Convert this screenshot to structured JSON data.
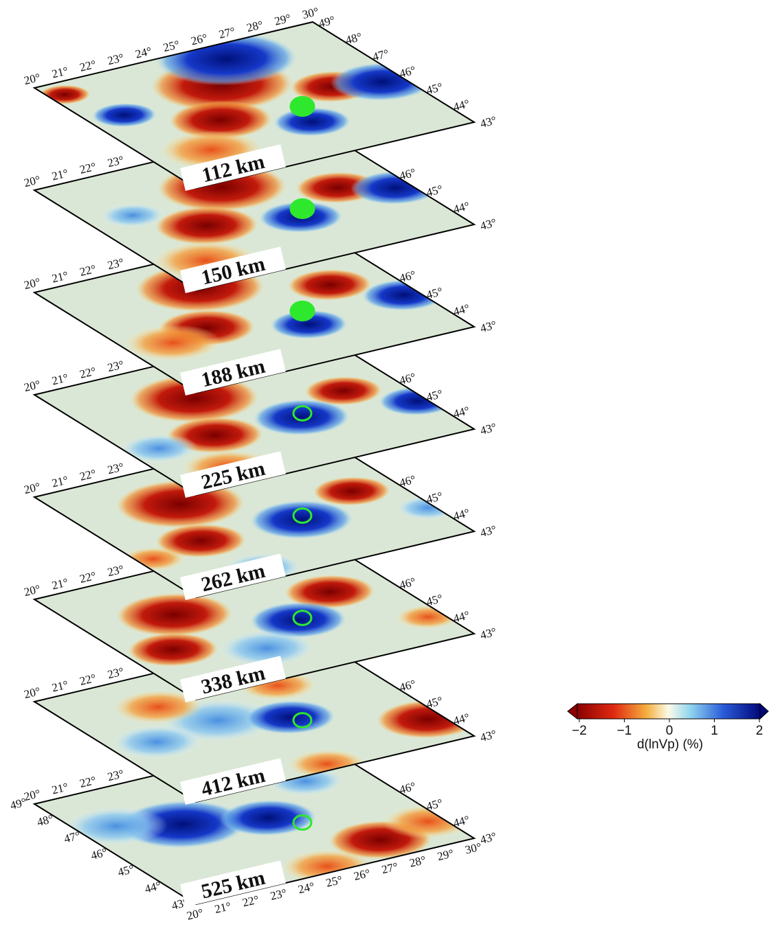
{
  "slices": [
    {
      "depth": "112 km"
    },
    {
      "depth": "150 km"
    },
    {
      "depth": "188 km"
    },
    {
      "depth": "225 km"
    },
    {
      "depth": "262 km"
    },
    {
      "depth": "338 km"
    },
    {
      "depth": "412 km"
    },
    {
      "depth": "525 km"
    }
  ],
  "lon_labels": [
    "20°",
    "21°",
    "22°",
    "23°",
    "24°",
    "25°",
    "26°",
    "27°",
    "28°",
    "29°",
    "30°"
  ],
  "lat_labels": [
    "43°",
    "44°",
    "45°",
    "46°",
    "47°",
    "48°",
    "49°"
  ],
  "colorbar": {
    "label": "d(lnVp) (%)",
    "lim": [
      -2,
      2
    ],
    "ticks": [
      {
        "value": -2,
        "label": "−2"
      },
      {
        "value": -1,
        "label": "−1"
      },
      0,
      1,
      2
    ]
  }
}
